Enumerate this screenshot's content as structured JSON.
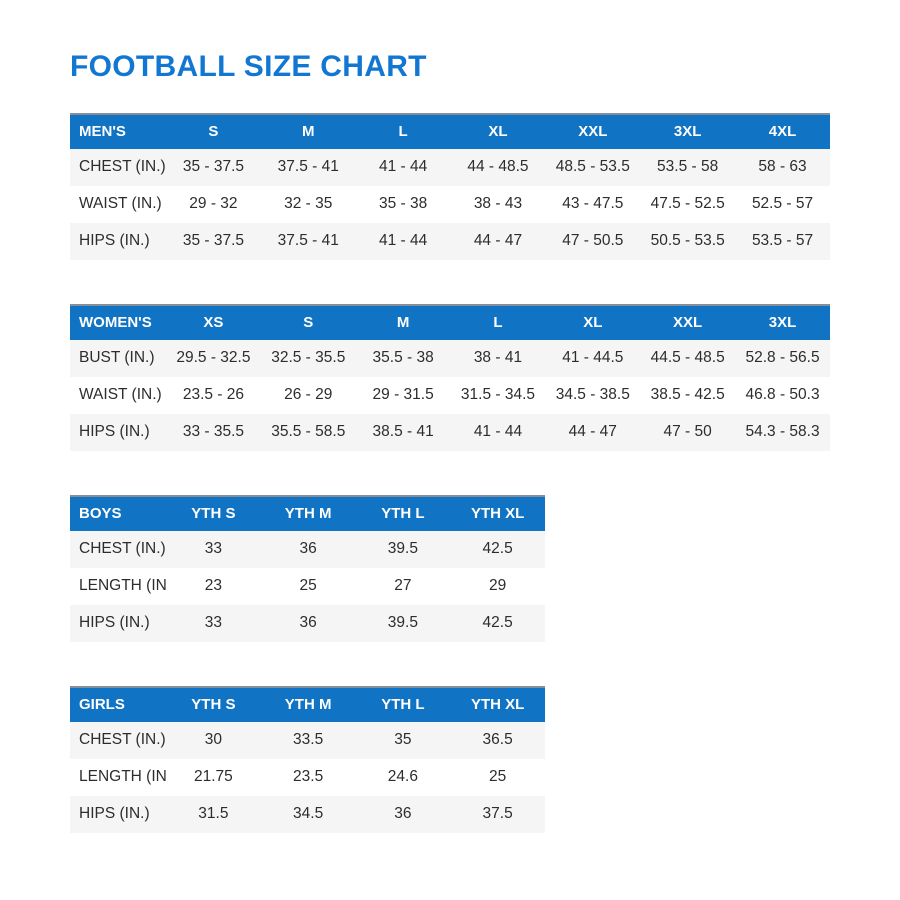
{
  "title": "FOOTBALL SIZE CHART",
  "colors": {
    "title_blue": "#1277d2",
    "header_bar_blue": "#1173c4",
    "alt_row_gray": "#f5f5f6",
    "body_text": "#2d2d30",
    "header_text": "#ffffff"
  },
  "chart_data": [
    {
      "type": "table",
      "name": "MEN'S",
      "columns": [
        "S",
        "M",
        "L",
        "XL",
        "XXL",
        "3XL",
        "4XL"
      ],
      "rows": [
        {
          "label": "CHEST (IN.)",
          "values": [
            "35 - 37.5",
            "37.5 - 41",
            "41 - 44",
            "44 - 48.5",
            "48.5 - 53.5",
            "53.5 - 58",
            "58 - 63"
          ]
        },
        {
          "label": "WAIST (IN.)",
          "values": [
            "29 - 32",
            "32 - 35",
            "35 - 38",
            "38 - 43",
            "43 - 47.5",
            "47.5 - 52.5",
            "52.5 - 57"
          ]
        },
        {
          "label": "HIPS (IN.)",
          "values": [
            "35 - 37.5",
            "37.5 - 41",
            "41 - 44",
            "44 - 47",
            "47 - 50.5",
            "50.5 - 53.5",
            "53.5 - 57"
          ]
        }
      ]
    },
    {
      "type": "table",
      "name": "WOMEN'S",
      "columns": [
        "XS",
        "S",
        "M",
        "L",
        "XL",
        "XXL",
        "3XL"
      ],
      "rows": [
        {
          "label": "BUST (IN.)",
          "values": [
            "29.5 - 32.5",
            "32.5 - 35.5",
            "35.5 - 38",
            "38 - 41",
            "41 - 44.5",
            "44.5 - 48.5",
            "52.8 - 56.5"
          ]
        },
        {
          "label": "WAIST (IN.)",
          "values": [
            "23.5 - 26",
            "26 - 29",
            "29 - 31.5",
            "31.5 - 34.5",
            "34.5 - 38.5",
            "38.5 - 42.5",
            "46.8 - 50.3"
          ]
        },
        {
          "label": "HIPS (IN.)",
          "values": [
            "33 - 35.5",
            "35.5 - 58.5",
            "38.5 - 41",
            "41 - 44",
            "44 - 47",
            "47 - 50",
            "54.3 - 58.3"
          ]
        }
      ]
    },
    {
      "type": "table",
      "name": "BOYS",
      "columns": [
        "YTH S",
        "YTH M",
        "YTH L",
        "YTH XL"
      ],
      "rows": [
        {
          "label": "CHEST (IN.)",
          "values": [
            "33",
            "36",
            "39.5",
            "42.5"
          ]
        },
        {
          "label": "LENGTH (IN.)",
          "values": [
            "23",
            "25",
            "27",
            "29"
          ]
        },
        {
          "label": "HIPS (IN.)",
          "values": [
            "33",
            "36",
            "39.5",
            "42.5"
          ]
        }
      ]
    },
    {
      "type": "table",
      "name": "GIRLS",
      "columns": [
        "YTH S",
        "YTH M",
        "YTH L",
        "YTH XL"
      ],
      "rows": [
        {
          "label": "CHEST (IN.)",
          "values": [
            "30",
            "33.5",
            "35",
            "36.5"
          ]
        },
        {
          "label": "LENGTH (IN.)",
          "values": [
            "21.75",
            "23.5",
            "24.6",
            "25"
          ]
        },
        {
          "label": "HIPS (IN.)",
          "values": [
            "31.5",
            "34.5",
            "36",
            "37.5"
          ]
        }
      ]
    }
  ]
}
